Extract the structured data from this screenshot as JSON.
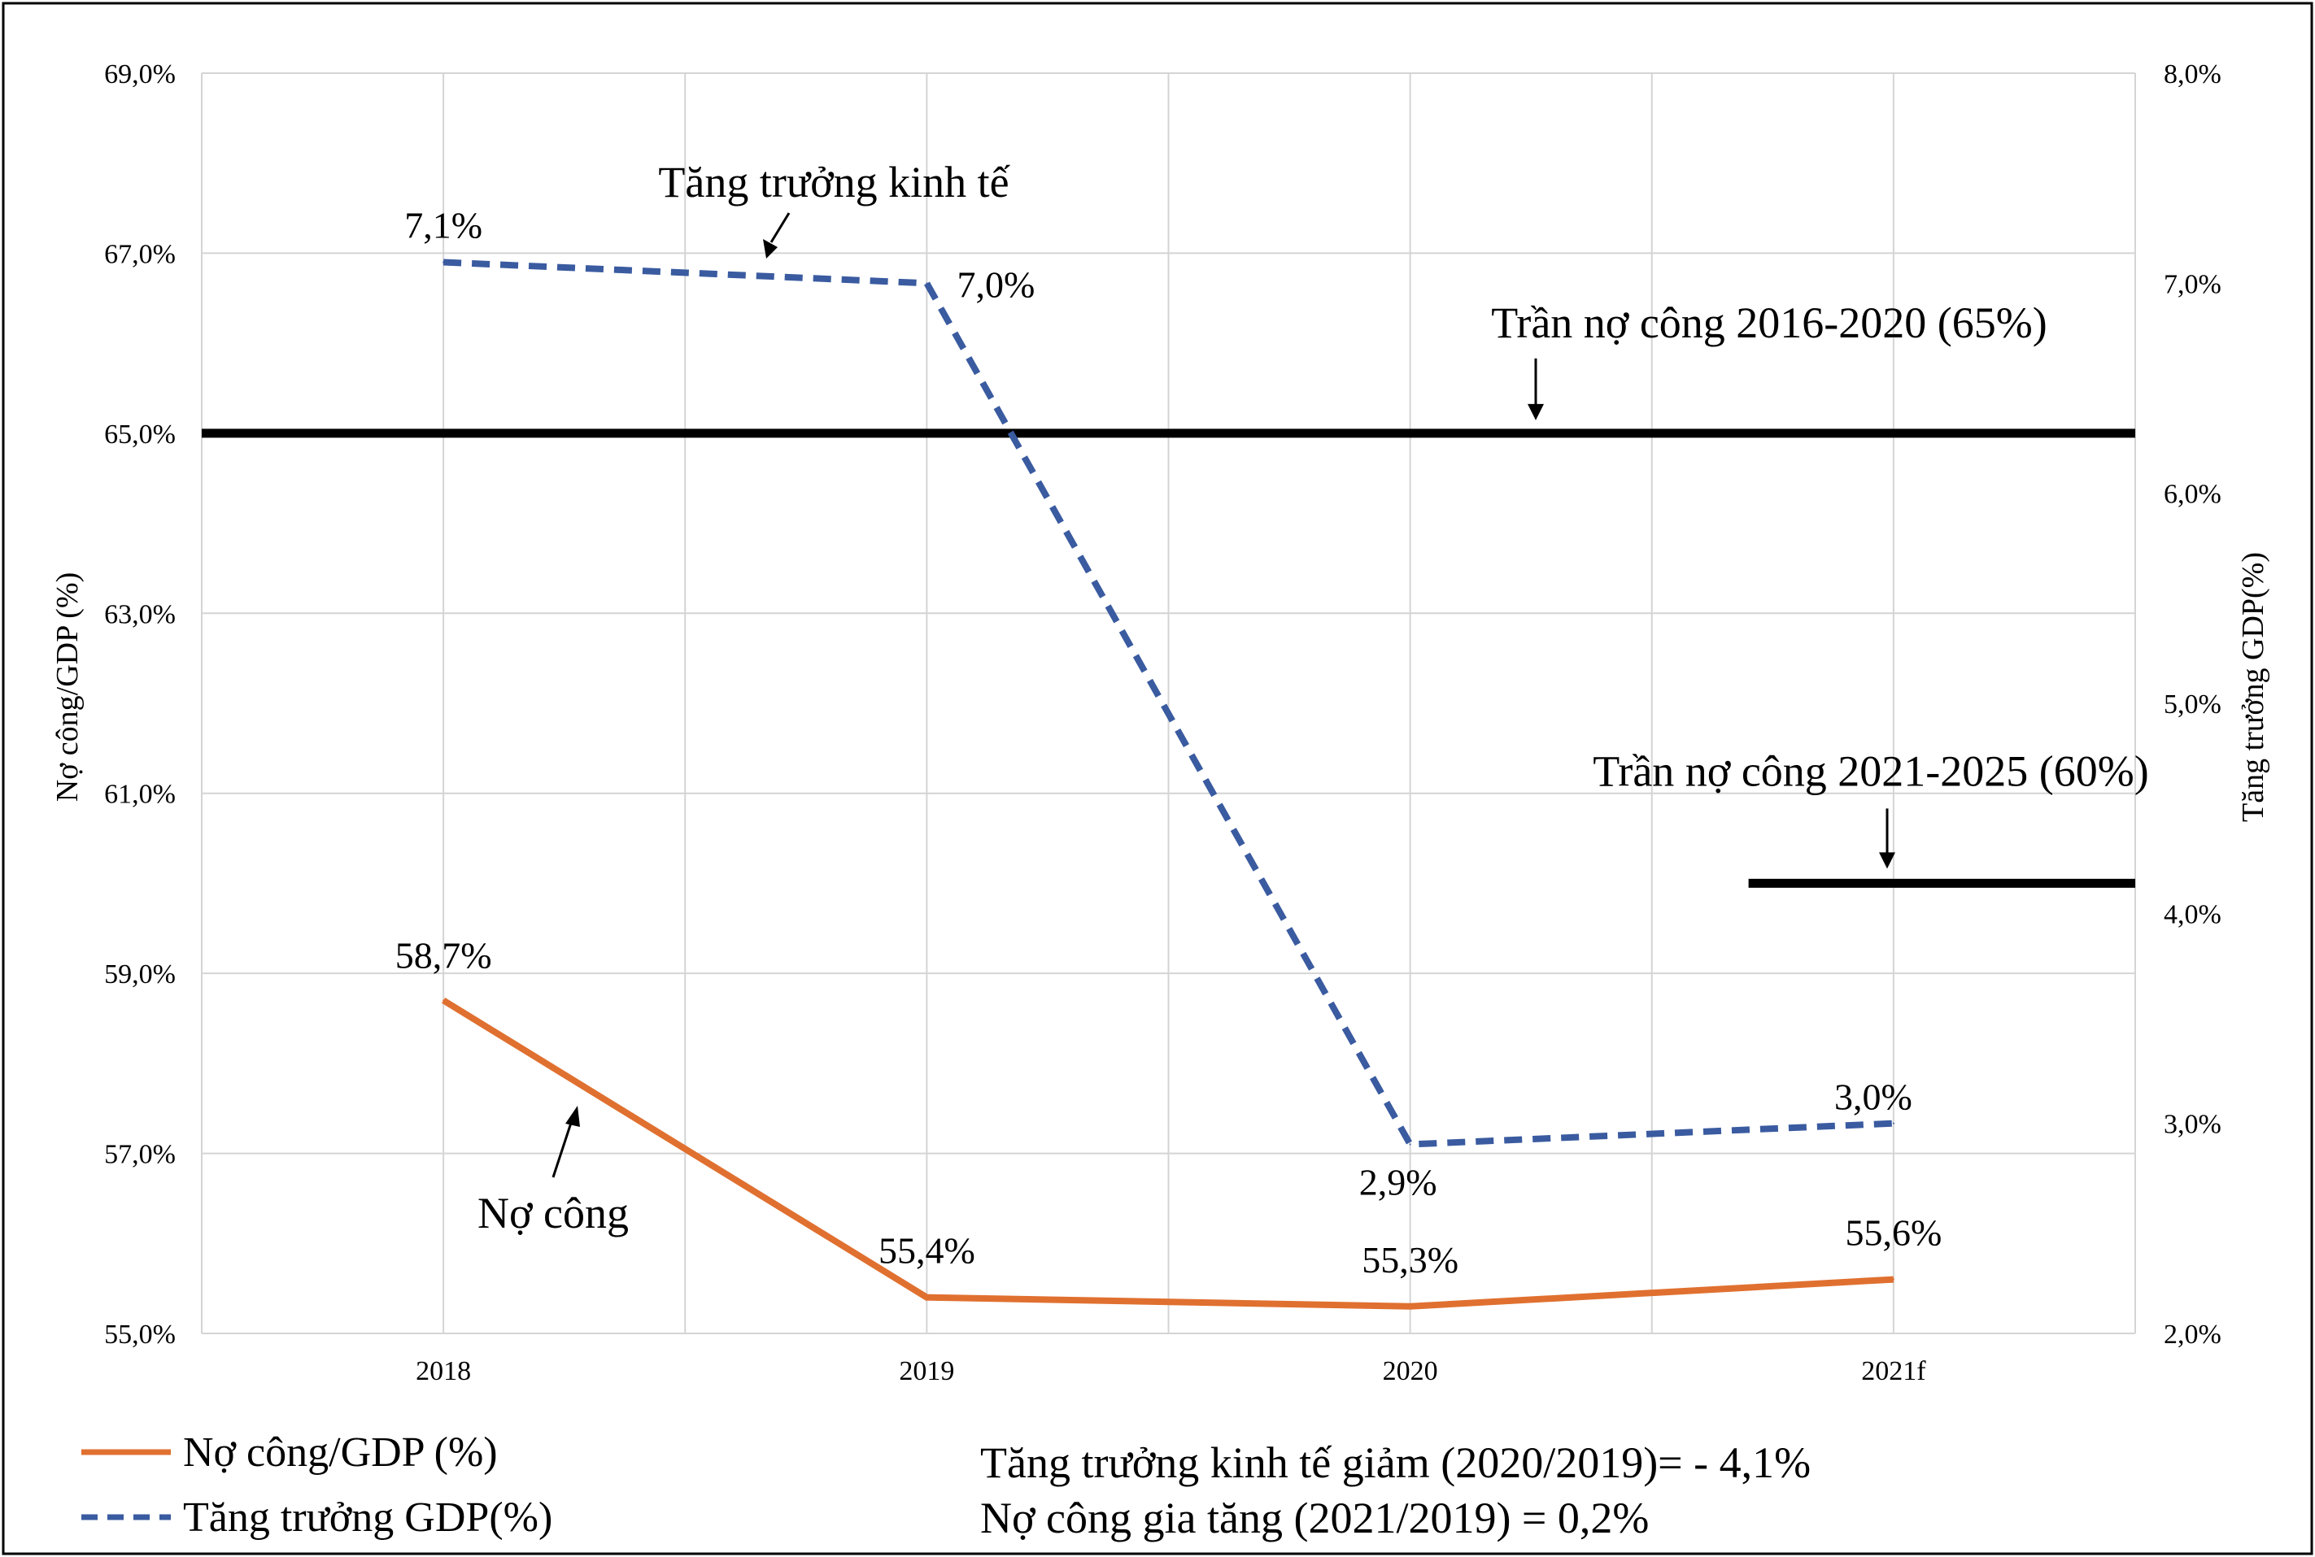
{
  "chart_data": {
    "type": "line",
    "categories": [
      "2018",
      "2019",
      "2020",
      "2021f"
    ],
    "ylabel": "Nợ công/GDP (%)",
    "y2label": "Tăng trưởng GDP(%)",
    "ylim": [
      55.0,
      69.0
    ],
    "y2lim": [
      2.0,
      8.0
    ],
    "yticks": [
      "55,0%",
      "57,0%",
      "59,0%",
      "61,0%",
      "63,0%",
      "65,0%",
      "67,0%",
      "69,0%"
    ],
    "y2ticks": [
      "2,0%",
      "3,0%",
      "4,0%",
      "5,0%",
      "6,0%",
      "7,0%",
      "8,0%"
    ],
    "grid": true,
    "series": [
      {
        "name": "Nợ công/GDP (%)",
        "axis": "left",
        "color": "#E07030",
        "style": "solid",
        "values": [
          58.7,
          55.4,
          55.3,
          55.6
        ],
        "labels": [
          "58,7%",
          "55,4%",
          "55,3%",
          "55,6%"
        ]
      },
      {
        "name": "Tăng trưởng GDP(%)",
        "axis": "right",
        "color": "#3A5BA0",
        "style": "dashed",
        "values": [
          7.1,
          7.0,
          2.9,
          3.0
        ],
        "labels": [
          "7,1%",
          "7,0%",
          "2,9%",
          "3,0%"
        ]
      }
    ],
    "reference_lines": [
      {
        "label": "Trần nợ công 2016-2020 (65%)",
        "value": 65.0,
        "from_category": 0,
        "to_category": 3
      },
      {
        "label": "Trần nợ công 2021-2025 (60%)",
        "value": 60.0,
        "from_category": 2.7,
        "to_category": 3
      }
    ],
    "annotations": {
      "growth": "Tăng trưởng kinh tế",
      "debt": "Nợ công"
    },
    "notes": [
      "Tăng trưởng kinh tế giảm (2020/2019)= - 4,1%",
      "Nợ công gia tăng (2021/2019) = 0,2%"
    ],
    "legend_position": "bottom-left"
  }
}
